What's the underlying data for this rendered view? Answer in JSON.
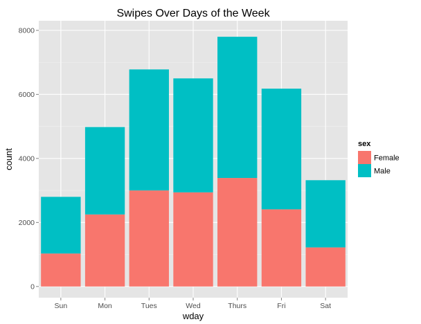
{
  "chart_data": {
    "type": "bar",
    "stacked": true,
    "title": "Swipes Over Days of the Week",
    "xlabel": "wday",
    "ylabel": "count",
    "categories": [
      "Sun",
      "Mon",
      "Tues",
      "Wed",
      "Thurs",
      "Fri",
      "Sat"
    ],
    "ylim": [
      -350,
      8300
    ],
    "yticks": [
      0,
      2000,
      4000,
      6000,
      8000
    ],
    "yticks_labels": [
      "0",
      "2000",
      "4000",
      "6000",
      "8000"
    ],
    "grid": true,
    "legend": {
      "title": "sex",
      "position": "right"
    },
    "series": [
      {
        "name": "Female",
        "color": "#F8766D",
        "values": [
          1030,
          2250,
          3000,
          2940,
          3390,
          2410,
          1220
        ]
      },
      {
        "name": "Male",
        "color": "#00BFC4",
        "values": [
          1770,
          2730,
          3780,
          3560,
          4410,
          3770,
          2100
        ]
      }
    ],
    "panel_background": "#E5E5E5",
    "grid_color": "#FFFFFF"
  }
}
